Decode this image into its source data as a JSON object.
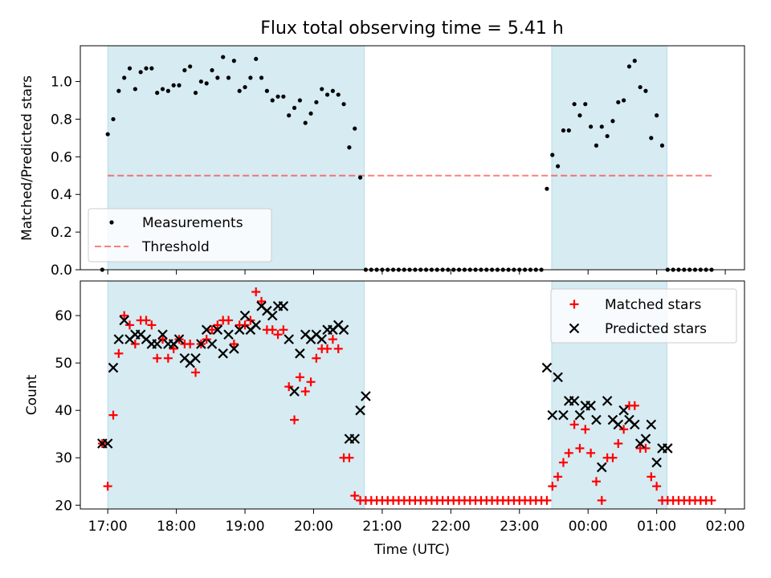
{
  "title": "Flux total observing time = 5.41 h",
  "colors": {
    "shade": "#add8e6",
    "threshold": "#ff0000",
    "matched": "#ff0000",
    "predicted": "#000000",
    "measurement": "#000000"
  },
  "chart_data": [
    {
      "type": "scatter",
      "name": "ratio-panel",
      "ylabel": "Matched/Predicted stars",
      "xlabel": "",
      "xlim": [
        16.6,
        26.28
      ],
      "ylim": [
        0,
        1.19
      ],
      "yticks": [
        0.0,
        0.2,
        0.4,
        0.6,
        0.8,
        1.0
      ],
      "ytick_labels": [
        "0.0",
        "0.2",
        "0.4",
        "0.6",
        "0.8",
        "1.0"
      ],
      "xticks": [
        17,
        18,
        19,
        20,
        21,
        22,
        23,
        24,
        25,
        26
      ],
      "shaded_spans": [
        [
          17.0,
          20.74
        ],
        [
          23.47,
          25.15
        ]
      ],
      "threshold": {
        "value": 0.5,
        "x_range": [
          17.0,
          25.83
        ],
        "label": "Threshold"
      },
      "legend": {
        "position": "lower-left",
        "entries": [
          "Measurements",
          "Threshold"
        ]
      },
      "series": [
        {
          "name": "Measurements",
          "x": [
            16.92,
            17.0,
            17.08,
            17.16,
            17.24,
            17.32,
            17.4,
            17.48,
            17.56,
            17.64,
            17.72,
            17.8,
            17.88,
            17.96,
            18.04,
            18.12,
            18.2,
            18.28,
            18.36,
            18.44,
            18.52,
            18.6,
            18.68,
            18.76,
            18.84,
            18.92,
            19.0,
            19.08,
            19.16,
            19.24,
            19.32,
            19.4,
            19.48,
            19.56,
            19.64,
            19.72,
            19.8,
            19.88,
            19.96,
            20.04,
            20.12,
            20.2,
            20.28,
            20.36,
            20.44,
            20.52,
            20.6,
            20.68,
            20.76,
            20.84,
            20.92,
            21.0,
            21.08,
            21.16,
            21.24,
            21.32,
            21.4,
            21.48,
            21.56,
            21.64,
            21.72,
            21.8,
            21.88,
            21.96,
            22.04,
            22.12,
            22.2,
            22.28,
            22.36,
            22.44,
            22.52,
            22.6,
            22.68,
            22.76,
            22.84,
            22.92,
            23.0,
            23.08,
            23.16,
            23.24,
            23.32,
            23.4,
            23.48,
            23.56,
            23.64,
            23.72,
            23.8,
            23.88,
            23.96,
            24.04,
            24.12,
            24.2,
            24.28,
            24.36,
            24.44,
            24.52,
            24.6,
            24.68,
            24.76,
            24.84,
            24.92,
            25.0,
            25.08,
            25.16,
            25.24,
            25.32,
            25.4,
            25.48,
            25.56,
            25.64,
            25.72,
            25.8
          ],
          "y": [
            0.0,
            0.72,
            0.8,
            0.95,
            1.02,
            1.07,
            0.96,
            1.05,
            1.07,
            1.07,
            0.94,
            0.96,
            0.95,
            0.98,
            0.98,
            1.06,
            1.08,
            0.94,
            1.0,
            0.99,
            1.06,
            1.02,
            1.13,
            1.02,
            1.11,
            0.95,
            0.97,
            1.02,
            1.12,
            1.02,
            0.95,
            0.9,
            0.92,
            0.92,
            0.82,
            0.86,
            0.9,
            0.78,
            0.83,
            0.89,
            0.96,
            0.93,
            0.95,
            0.93,
            0.88,
            0.65,
            0.75,
            0.49,
            0.0,
            0.0,
            0.0,
            0.0,
            0.0,
            0.0,
            0.0,
            0.0,
            0.0,
            0.0,
            0.0,
            0.0,
            0.0,
            0.0,
            0.0,
            0.0,
            0.0,
            0.0,
            0.0,
            0.0,
            0.0,
            0.0,
            0.0,
            0.0,
            0.0,
            0.0,
            0.0,
            0.0,
            0.0,
            0.0,
            0.0,
            0.0,
            0.0,
            0.43,
            0.61,
            0.55,
            0.74,
            0.74,
            0.88,
            0.82,
            0.88,
            0.76,
            0.66,
            0.76,
            0.71,
            0.79,
            0.89,
            0.9,
            1.08,
            1.11,
            0.97,
            0.95,
            0.7,
            0.82,
            0.66,
            0.0,
            0.0,
            0.0,
            0.0,
            0.0,
            0.0,
            0.0,
            0.0,
            0.0
          ]
        }
      ]
    },
    {
      "type": "scatter",
      "name": "count-panel",
      "ylabel": "Count",
      "xlabel": "Time (UTC)",
      "xlim": [
        16.6,
        26.28
      ],
      "ylim": [
        19.2,
        67.3
      ],
      "yticks": [
        20,
        30,
        40,
        50,
        60
      ],
      "ytick_labels": [
        "20",
        "30",
        "40",
        "50",
        "60"
      ],
      "xticks": [
        17,
        18,
        19,
        20,
        21,
        22,
        23,
        24,
        25,
        26
      ],
      "xtick_labels": [
        "17:00",
        "18:00",
        "19:00",
        "20:00",
        "21:00",
        "22:00",
        "23:00",
        "00:00",
        "01:00",
        "02:00"
      ],
      "shaded_spans": [
        [
          17.0,
          20.74
        ],
        [
          23.47,
          25.15
        ]
      ],
      "legend": {
        "position": "top-right",
        "entries": [
          "Matched stars",
          "Predicted stars"
        ]
      },
      "series": [
        {
          "name": "Matched stars",
          "marker": "plus",
          "x": [
            16.92,
            17.0,
            17.08,
            17.16,
            17.24,
            17.32,
            17.4,
            17.48,
            17.56,
            17.64,
            17.72,
            17.8,
            17.88,
            17.96,
            18.04,
            18.12,
            18.2,
            18.28,
            18.36,
            18.44,
            18.52,
            18.6,
            18.68,
            18.76,
            18.84,
            18.92,
            19.0,
            19.08,
            19.16,
            19.24,
            19.32,
            19.4,
            19.48,
            19.56,
            19.64,
            19.72,
            19.8,
            19.88,
            19.96,
            20.04,
            20.12,
            20.2,
            20.28,
            20.36,
            20.44,
            20.52,
            20.6,
            20.68,
            20.76,
            20.84,
            20.92,
            21.0,
            21.08,
            21.16,
            21.24,
            21.32,
            21.4,
            21.48,
            21.56,
            21.64,
            21.72,
            21.8,
            21.88,
            21.96,
            22.04,
            22.12,
            22.2,
            22.28,
            22.36,
            22.44,
            22.52,
            22.6,
            22.68,
            22.76,
            22.84,
            22.92,
            23.0,
            23.08,
            23.16,
            23.24,
            23.32,
            23.4,
            23.48,
            23.56,
            23.64,
            23.72,
            23.8,
            23.88,
            23.96,
            24.04,
            24.12,
            24.2,
            24.28,
            24.36,
            24.44,
            24.52,
            24.6,
            24.68,
            24.76,
            24.84,
            24.92,
            25.0,
            25.08,
            25.16,
            25.24,
            25.32,
            25.4,
            25.48,
            25.56,
            25.64,
            25.72,
            25.8
          ],
          "y": [
            33,
            24,
            39,
            52,
            60,
            58,
            54,
            59,
            59,
            58,
            51,
            55,
            51,
            53,
            55,
            54,
            54,
            48,
            54,
            55,
            57,
            58,
            59,
            59,
            54,
            58,
            58,
            59,
            65,
            63,
            57,
            57,
            56,
            57,
            45,
            38,
            47,
            44,
            46,
            51,
            53,
            53,
            55,
            53,
            30,
            30,
            22,
            21,
            21,
            21,
            21,
            21,
            21,
            21,
            21,
            21,
            21,
            21,
            21,
            21,
            21,
            21,
            21,
            21,
            21,
            21,
            21,
            21,
            21,
            21,
            21,
            21,
            21,
            21,
            21,
            21,
            21,
            21,
            21,
            21,
            21,
            21,
            24,
            26,
            29,
            31,
            37,
            32,
            36,
            31,
            25,
            21,
            30,
            30,
            33,
            36,
            41,
            41,
            32,
            32,
            26,
            24,
            21,
            21,
            21,
            21,
            21,
            21,
            21,
            21,
            21,
            21
          ]
        },
        {
          "name": "Predicted stars",
          "marker": "x",
          "x": [
            16.92,
            17.0,
            17.08,
            17.16,
            17.24,
            17.32,
            17.4,
            17.48,
            17.56,
            17.64,
            17.72,
            17.8,
            17.88,
            17.96,
            18.04,
            18.12,
            18.2,
            18.28,
            18.36,
            18.44,
            18.52,
            18.6,
            18.68,
            18.76,
            18.84,
            18.92,
            19.0,
            19.08,
            19.16,
            19.24,
            19.32,
            19.4,
            19.48,
            19.56,
            19.64,
            19.72,
            19.8,
            19.88,
            19.96,
            20.04,
            20.12,
            20.2,
            20.28,
            20.36,
            20.44,
            20.52,
            20.6,
            20.68,
            20.76,
            23.4,
            23.48,
            23.56,
            23.64,
            23.72,
            23.8,
            23.88,
            23.96,
            24.04,
            24.12,
            24.2,
            24.28,
            24.36,
            24.44,
            24.52,
            24.6,
            24.68,
            24.76,
            24.84,
            24.92,
            25.0,
            25.08,
            25.16
          ],
          "y": [
            33,
            33,
            49,
            55,
            59,
            55,
            56,
            56,
            55,
            54,
            54,
            56,
            54,
            54,
            55,
            51,
            50,
            51,
            54,
            57,
            54,
            57,
            52,
            56,
            53,
            57,
            60,
            57,
            58,
            62,
            61,
            60,
            62,
            62,
            55,
            44,
            52,
            56,
            55,
            56,
            55,
            57,
            57,
            58,
            57,
            34,
            34,
            40,
            43,
            49,
            39,
            47,
            39,
            42,
            42,
            39,
            41,
            41,
            38,
            28,
            42,
            38,
            37,
            40,
            38,
            37,
            33,
            34,
            37,
            29,
            32,
            32
          ]
        }
      ]
    }
  ]
}
